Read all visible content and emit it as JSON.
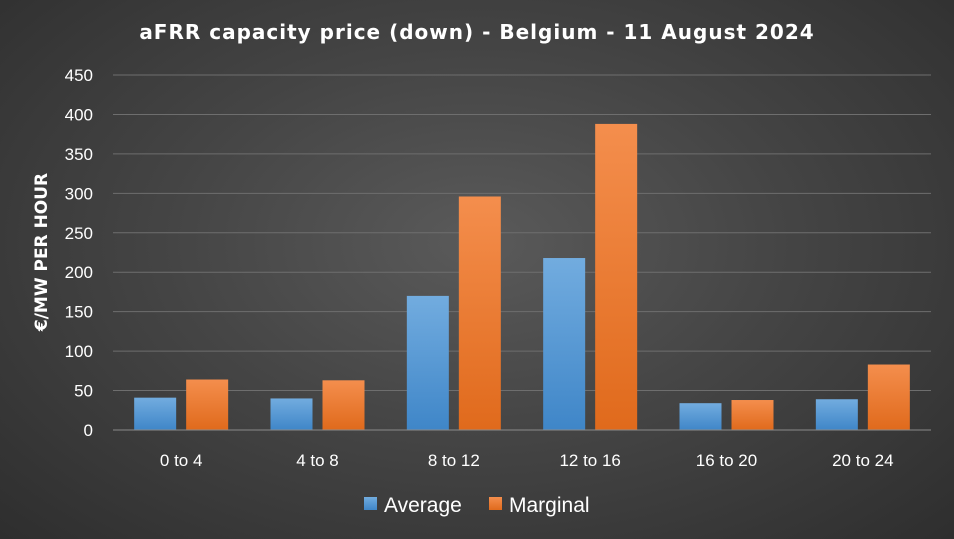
{
  "chart_data": {
    "type": "bar",
    "title": "aFRR capacity price (down) - Belgium - 11 August 2024",
    "xlabel": "",
    "ylabel": "€/MW PER HOUR",
    "categories": [
      "0 to 4",
      "4 to 8",
      "8 to 12",
      "12 to 16",
      "16 to 20",
      "20 to 24"
    ],
    "series": [
      {
        "name": "Average",
        "values": [
          41,
          40,
          170,
          218,
          34,
          39
        ],
        "color": "#5b9bd5"
      },
      {
        "name": "Marginal",
        "values": [
          64,
          63,
          296,
          388,
          38,
          83
        ],
        "color": "#ed7d31"
      }
    ],
    "ylim": [
      0,
      450
    ],
    "yticks": [
      0,
      50,
      100,
      150,
      200,
      250,
      300,
      350,
      400,
      450
    ],
    "grid": true,
    "legend": "bottom"
  }
}
